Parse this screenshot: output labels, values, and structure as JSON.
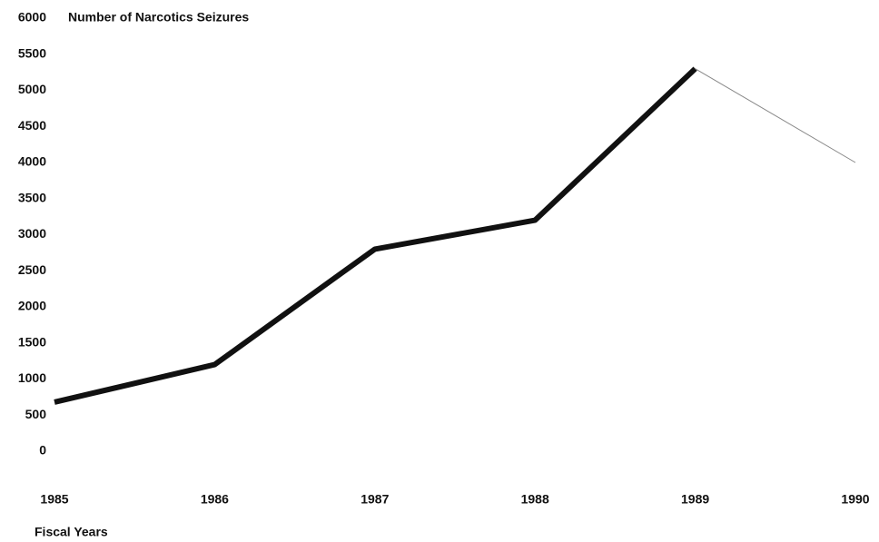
{
  "chart_data": {
    "type": "line",
    "title": "Number of Narcotics Seizures",
    "x_label": "Fiscal Years",
    "categories": [
      "1985",
      "1986",
      "1987",
      "1988",
      "1989",
      "1990"
    ],
    "series": [
      {
        "color": "#111111",
        "line_width": 6,
        "values": [
          680,
          1200,
          2800,
          3200,
          5300,
          null
        ]
      },
      {
        "color": "#888888",
        "line_width": 1,
        "values": [
          null,
          null,
          null,
          null,
          5300,
          4000
        ]
      }
    ],
    "ylim": [
      0,
      6000
    ],
    "yticks": [
      0,
      500,
      1000,
      1500,
      2000,
      2500,
      3000,
      3500,
      4000,
      4500,
      5000,
      5500,
      6000
    ],
    "grid": false
  }
}
